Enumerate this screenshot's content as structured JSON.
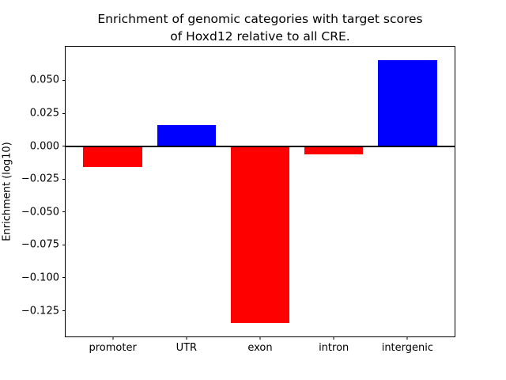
{
  "figure": {
    "background_color": "#ffffff",
    "axis_color": "#000000",
    "text_color": "#000000"
  },
  "chart_data": {
    "type": "bar",
    "title": "Enrichment of genomic categories with target scores\nof Hoxd12 relative to all CRE.",
    "xlabel": "",
    "ylabel": "Enrichment (log10)",
    "categories": [
      "promoter",
      "UTR",
      "exon",
      "intron",
      "intergenic"
    ],
    "values": [
      -0.0161,
      0.0161,
      -0.1345,
      -0.0065,
      0.0655
    ],
    "bar_colors": [
      "#ff0000",
      "#0000ff",
      "#ff0000",
      "#ff0000",
      "#0000ff"
    ],
    "positive_color": "#0000ff",
    "negative_color": "#ff0000",
    "bar_width": 0.8,
    "xlim": [
      -0.64,
      4.64
    ],
    "ylim": [
      -0.1445,
      0.0755
    ],
    "yticks": [
      0.05,
      0.025,
      0.0,
      -0.025,
      -0.05,
      -0.075,
      -0.1,
      -0.125
    ],
    "ytick_labels": [
      "0.050",
      "0.025",
      "0.000",
      "−0.025",
      "−0.050",
      "−0.075",
      "−0.100",
      "−0.125"
    ],
    "zero_line": true,
    "grid": false,
    "legend": null
  }
}
